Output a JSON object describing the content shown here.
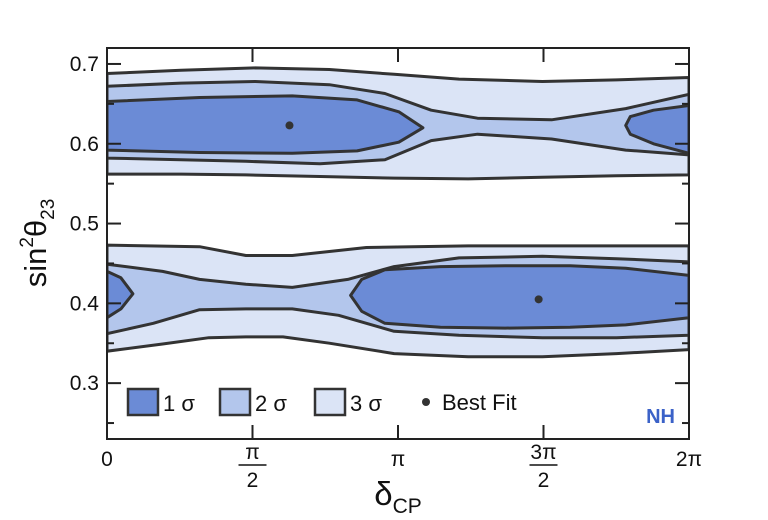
{
  "chart_data": {
    "type": "contour",
    "xlabel": "δ",
    "xlabel_sub": "CP",
    "ylabel": "sin",
    "ylabel_sup": "2",
    "ylabel_theta": "θ",
    "ylabel_sub": "23",
    "xlim": [
      0,
      6.2832
    ],
    "ylim": [
      0.23,
      0.72
    ],
    "y_ticks": [
      {
        "value": 0.3,
        "label": "0.3"
      },
      {
        "value": 0.4,
        "label": "0.4"
      },
      {
        "value": 0.5,
        "label": "0.5"
      },
      {
        "value": 0.6,
        "label": "0.6"
      },
      {
        "value": 0.7,
        "label": "0.7"
      }
    ],
    "x_ticks": [
      {
        "value": 0,
        "label": "0",
        "kind": "plain"
      },
      {
        "value": 1.5708,
        "num": "π",
        "den": "2",
        "kind": "frac"
      },
      {
        "value": 3.1416,
        "label": "π",
        "kind": "plain"
      },
      {
        "value": 4.7124,
        "num": "3π",
        "den": "2",
        "kind": "frac"
      },
      {
        "value": 6.2832,
        "label": "2π",
        "kind": "plain"
      }
    ],
    "colors": {
      "sigma1": "#6b8bd6",
      "sigma2": "#b3c6ec",
      "sigma3": "#dbe4f6",
      "outline": "#333333",
      "tag": "#3b62c8"
    },
    "legend": {
      "placement": "bottom-left",
      "items": [
        {
          "key": "sigma1",
          "label": "1 σ",
          "kind": "box"
        },
        {
          "key": "sigma2",
          "label": "2 σ",
          "kind": "box"
        },
        {
          "key": "sigma3",
          "label": "3 σ",
          "kind": "box"
        },
        {
          "key": "best",
          "label": "Best Fit",
          "kind": "dot"
        }
      ]
    },
    "annotation": "NH",
    "best_fit": [
      {
        "x": 1.97,
        "y": 0.623
      },
      {
        "x": 4.66,
        "y": 0.405
      }
    ],
    "regions": {
      "sigma3_upper": [
        [
          0,
          0.688
        ],
        [
          0.8,
          0.692
        ],
        [
          1.6,
          0.695
        ],
        [
          2.4,
          0.693
        ],
        [
          3.1,
          0.687
        ],
        [
          3.8,
          0.681
        ],
        [
          4.7,
          0.678
        ],
        [
          5.5,
          0.68
        ],
        [
          6.2832,
          0.683
        ],
        [
          6.2832,
          0.561
        ],
        [
          5.5,
          0.56
        ],
        [
          4.7,
          0.558
        ],
        [
          3.9,
          0.556
        ],
        [
          3.1,
          0.557
        ],
        [
          2.3,
          0.559
        ],
        [
          1.5,
          0.561
        ],
        [
          0.8,
          0.562
        ],
        [
          0,
          0.562
        ]
      ],
      "sigma3_lower": [
        [
          0,
          0.473
        ],
        [
          1.0,
          0.471
        ],
        [
          1.5,
          0.46
        ],
        [
          2.0,
          0.46
        ],
        [
          2.8,
          0.47
        ],
        [
          3.9,
          0.472
        ],
        [
          4.7,
          0.472
        ],
        [
          5.5,
          0.472
        ],
        [
          6.2832,
          0.472
        ],
        [
          6.2832,
          0.342
        ],
        [
          5.5,
          0.337
        ],
        [
          4.7,
          0.333
        ],
        [
          3.9,
          0.333
        ],
        [
          3.1,
          0.337
        ],
        [
          2.4,
          0.35
        ],
        [
          1.9,
          0.358
        ],
        [
          1.5,
          0.358
        ],
        [
          1.1,
          0.357
        ],
        [
          0.6,
          0.349
        ],
        [
          0,
          0.34
        ]
      ],
      "sigma2_upper": [
        [
          0,
          0.672
        ],
        [
          0.8,
          0.676
        ],
        [
          1.6,
          0.678
        ],
        [
          2.4,
          0.674
        ],
        [
          3.0,
          0.663
        ],
        [
          3.5,
          0.642
        ],
        [
          4.0,
          0.632
        ],
        [
          4.8,
          0.63
        ],
        [
          5.6,
          0.644
        ],
        [
          6.2832,
          0.662
        ],
        [
          6.2832,
          0.586
        ],
        [
          5.6,
          0.592
        ],
        [
          4.8,
          0.606
        ],
        [
          4.0,
          0.612
        ],
        [
          3.5,
          0.604
        ],
        [
          3.0,
          0.58
        ],
        [
          2.3,
          0.575
        ],
        [
          1.5,
          0.578
        ],
        [
          0.8,
          0.58
        ],
        [
          0,
          0.582
        ]
      ],
      "sigma2_lower": [
        [
          0,
          0.449
        ],
        [
          0.6,
          0.44
        ],
        [
          1.0,
          0.43
        ],
        [
          1.5,
          0.424
        ],
        [
          2.0,
          0.42
        ],
        [
          2.6,
          0.43
        ],
        [
          3.1,
          0.446
        ],
        [
          3.8,
          0.457
        ],
        [
          4.7,
          0.459
        ],
        [
          5.5,
          0.456
        ],
        [
          6.2832,
          0.452
        ],
        [
          6.2832,
          0.36
        ],
        [
          5.5,
          0.357
        ],
        [
          4.7,
          0.357
        ],
        [
          3.8,
          0.36
        ],
        [
          3.1,
          0.365
        ],
        [
          2.5,
          0.385
        ],
        [
          2.0,
          0.393
        ],
        [
          1.5,
          0.393
        ],
        [
          1.0,
          0.392
        ],
        [
          0.5,
          0.375
        ],
        [
          0,
          0.362
        ]
      ],
      "sigma1_upper_a": [
        [
          0,
          0.653
        ],
        [
          1.0,
          0.658
        ],
        [
          2.0,
          0.66
        ],
        [
          2.7,
          0.655
        ],
        [
          3.15,
          0.64
        ],
        [
          3.41,
          0.62
        ],
        [
          3.15,
          0.602
        ],
        [
          2.7,
          0.591
        ],
        [
          2.0,
          0.588
        ],
        [
          1.0,
          0.589
        ],
        [
          0,
          0.592
        ]
      ],
      "sigma1_upper_b": [
        [
          6.2832,
          0.648
        ],
        [
          5.9,
          0.642
        ],
        [
          5.65,
          0.634
        ],
        [
          5.6,
          0.623
        ],
        [
          5.65,
          0.612
        ],
        [
          5.9,
          0.6
        ],
        [
          6.2832,
          0.588
        ]
      ],
      "sigma1_lower_a": [
        [
          0,
          0.44
        ],
        [
          0.15,
          0.432
        ],
        [
          0.28,
          0.412
        ],
        [
          0.15,
          0.393
        ],
        [
          0,
          0.382
        ]
      ],
      "sigma1_lower_b": [
        [
          2.63,
          0.41
        ],
        [
          2.75,
          0.43
        ],
        [
          3.0,
          0.442
        ],
        [
          3.6,
          0.446
        ],
        [
          4.3,
          0.447
        ],
        [
          5.0,
          0.447
        ],
        [
          5.6,
          0.444
        ],
        [
          6.2832,
          0.435
        ],
        [
          6.2832,
          0.382
        ],
        [
          5.6,
          0.373
        ],
        [
          5.0,
          0.37
        ],
        [
          4.3,
          0.369
        ],
        [
          3.6,
          0.37
        ],
        [
          3.0,
          0.375
        ],
        [
          2.75,
          0.39
        ]
      ]
    }
  }
}
